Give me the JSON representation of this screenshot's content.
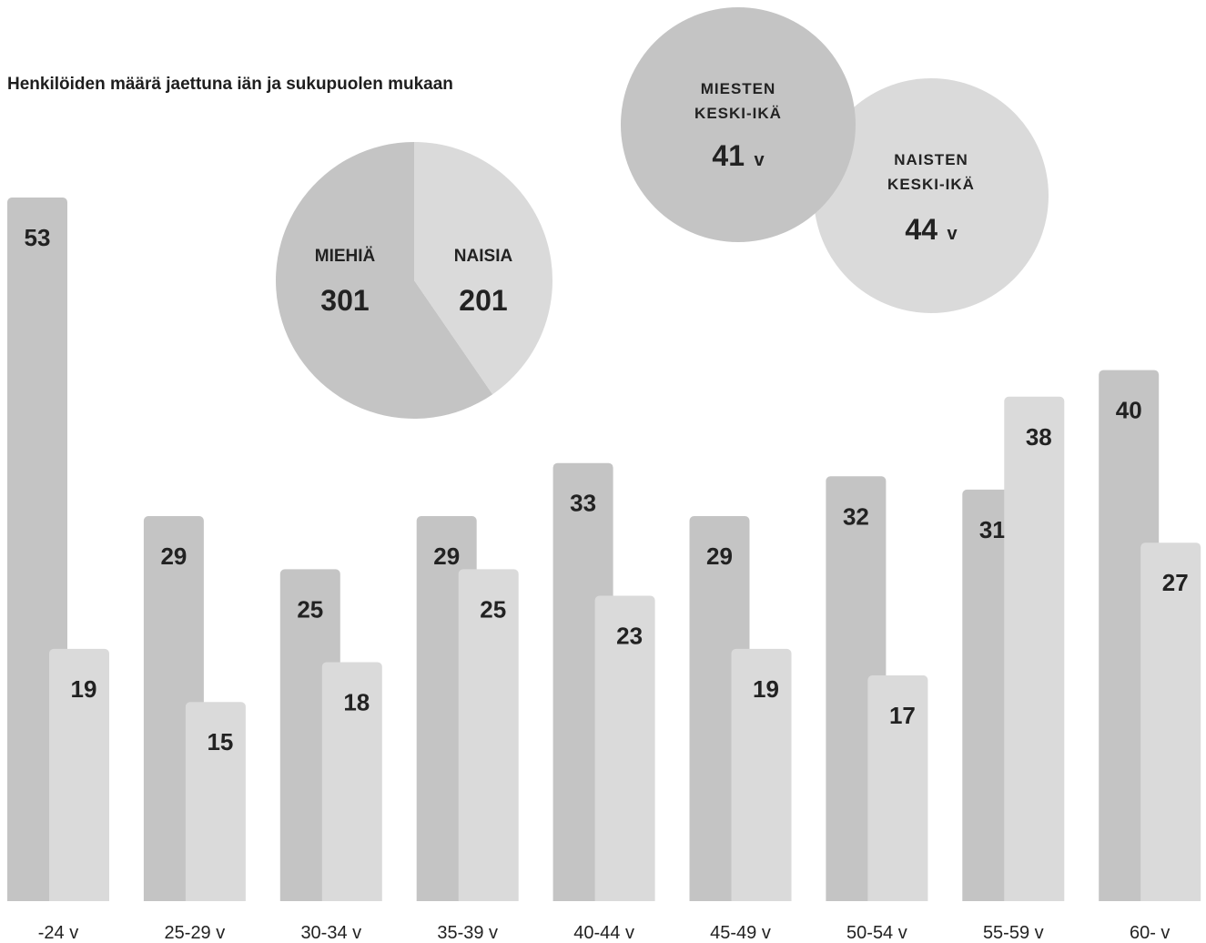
{
  "title": "Henkilöiden määrä jaettuna iän ja sukupuolen mukaan",
  "colors": {
    "men": "#c4c4c4",
    "women": "#dadada",
    "text": "#222222"
  },
  "pie": {
    "men_label": "MIEHIÄ",
    "women_label": "NAISIA",
    "men_value": "301",
    "women_value": "201"
  },
  "avg_age": {
    "men_line1": "MIESTEN",
    "men_line2": "KESKI-IKÄ",
    "men_value": "41",
    "women_line1": "NAISTEN",
    "women_line2": "KESKI-IKÄ",
    "women_value": "44",
    "unit": "v"
  },
  "chart_data": {
    "type": "bar",
    "title": "Henkilöiden määrä jaettuna iän ja sukupuolen mukaan",
    "categories": [
      "-24 v",
      "25-29 v",
      "30-34 v",
      "35-39 v",
      "40-44 v",
      "45-49 v",
      "50-54 v",
      "55-59 v",
      "60- v"
    ],
    "series": [
      {
        "values": [
          53,
          29,
          25,
          29,
          33,
          29,
          32,
          31,
          40
        ]
      },
      {
        "values": [
          19,
          15,
          18,
          25,
          23,
          19,
          17,
          38,
          27
        ]
      }
    ],
    "ylim": [
      0,
      53
    ],
    "grid": false
  }
}
